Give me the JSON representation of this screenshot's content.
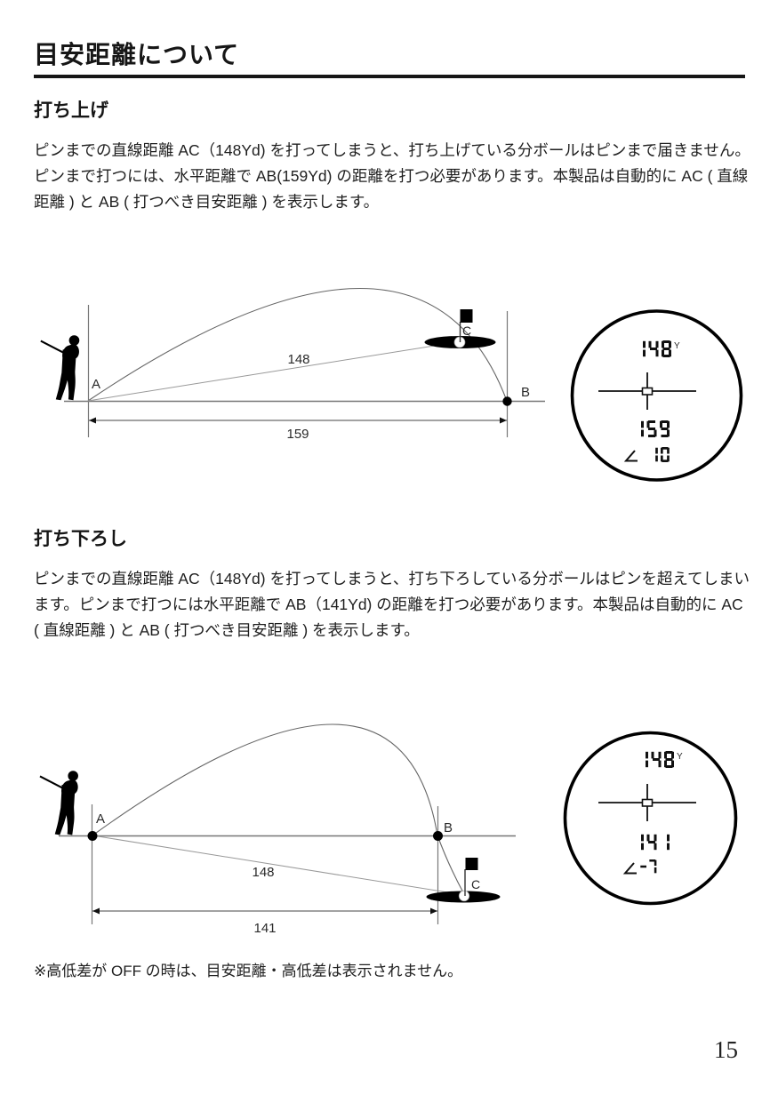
{
  "title": "目安距離について",
  "sections": [
    {
      "heading": "打ち上げ",
      "body": "ピンまでの直線距離 AC（148Yd) を打ってしまうと、打ち上げている分ボールはピンまで届きません。ピンまで打つには、水平距離で AB(159Yd) の距離を打つ必要があります。本製品は自動的に AC ( 直線距離 ) と AB ( 打つべき目安距離 ) を表示します。"
    },
    {
      "heading": "打ち下ろし",
      "body": "ピンまでの直線距離 AC（148Yd) を打ってしまうと、打ち下ろしている分ボールはピンを超えてしまいます。ピンまで打つには水平距離で AB（141Yd) の距離を打つ必要があります。本製品は自動的に AC ( 直線距離 ) と AB ( 打つべき目安距離 ) を表示します。"
    }
  ],
  "figures": [
    {
      "labels": {
        "a": "A",
        "b": "B",
        "c": "C"
      },
      "line_distance": "148",
      "horizontal_distance": "159",
      "scope": {
        "target_distance": "148",
        "unit": "Y",
        "play_distance": "159",
        "angle": "10"
      }
    },
    {
      "labels": {
        "a": "A",
        "b": "B",
        "c": "C"
      },
      "line_distance": "148",
      "horizontal_distance": "141",
      "scope": {
        "target_distance": "148",
        "unit": "Y",
        "play_distance": "141",
        "angle": "-7"
      }
    }
  ],
  "footnote": "※高低差が OFF の時は、目安距離・高低差は表示されません。",
  "page": {
    "number": "15"
  },
  "colors": {
    "ink": "#161616",
    "diagram_line": "#777777",
    "seg_display": "#111111"
  }
}
